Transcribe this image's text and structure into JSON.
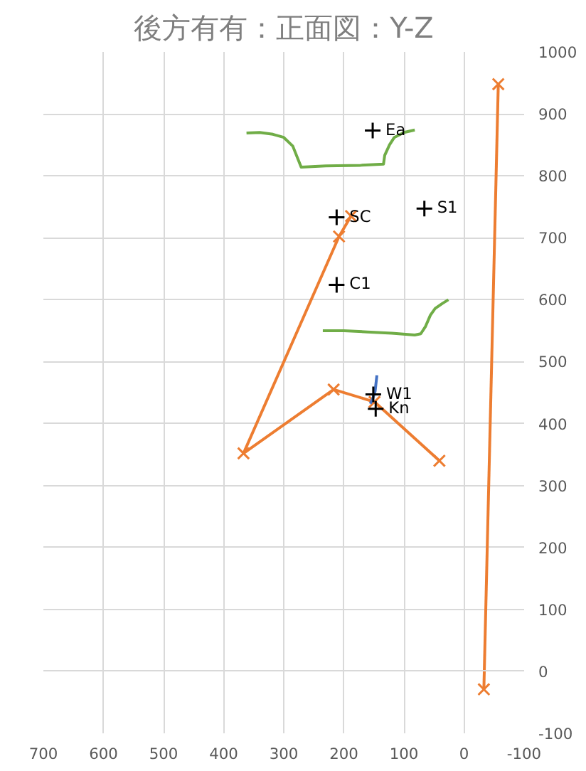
{
  "chart_data": {
    "type": "scatter",
    "title": "後方有有：正面図：Y-Z",
    "xlim": [
      700,
      -100
    ],
    "ylim": [
      -100,
      1000
    ],
    "xticks": [
      700,
      600,
      500,
      400,
      300,
      200,
      100,
      0,
      -100
    ],
    "yticks": [
      -100,
      0,
      100,
      200,
      300,
      400,
      500,
      600,
      700,
      800,
      900,
      1000
    ],
    "grid": true,
    "marker": "cross",
    "series": [
      {
        "type": "line",
        "color": "#ed7d31",
        "marker": "cross",
        "x": [
          -33,
          -57
        ],
        "values": [
          -29,
          948
        ]
      },
      {
        "type": "line",
        "color": "#ed7d31",
        "marker": "cross",
        "x": [
          188,
          208,
          367,
          217,
          149,
          41
        ],
        "values": [
          735,
          702,
          352,
          455,
          435,
          340
        ]
      },
      {
        "type": "line",
        "color": "#70ad47",
        "marker": "none",
        "x": [
          362,
          340,
          318,
          300,
          285,
          271,
          230,
          172,
          134,
          132,
          124,
          116,
          100,
          82
        ],
        "values": [
          869,
          870,
          867,
          862,
          848,
          814,
          816,
          817,
          819,
          833,
          850,
          862,
          870,
          874
        ]
      },
      {
        "type": "line",
        "color": "#70ad47",
        "marker": "none",
        "x": [
          235,
          200,
          161,
          120,
          82,
          72,
          64,
          56,
          48,
          36,
          26
        ],
        "values": [
          550,
          550,
          548,
          546,
          543,
          545,
          557,
          575,
          586,
          594,
          600
        ]
      },
      {
        "type": "line",
        "color": "#4472c4",
        "marker": "none",
        "x": [
          145,
          148,
          152,
          156
        ],
        "values": [
          478,
          452,
          440,
          432
        ]
      },
      {
        "color": "#000000",
        "x": [
          152,
          66,
          212,
          212,
          151,
          147
        ],
        "values": [
          873,
          747,
          733,
          624,
          447,
          424
        ]
      }
    ],
    "annotations": [
      {
        "text": "Ea",
        "x": 152,
        "y": 873
      },
      {
        "text": "S1",
        "x": 66,
        "y": 747
      },
      {
        "text": "SC",
        "x": 212,
        "y": 733
      },
      {
        "text": "C1",
        "x": 212,
        "y": 624
      },
      {
        "text": "W1",
        "x": 151,
        "y": 447
      },
      {
        "text": "Kn",
        "x": 147,
        "y": 424
      }
    ]
  }
}
